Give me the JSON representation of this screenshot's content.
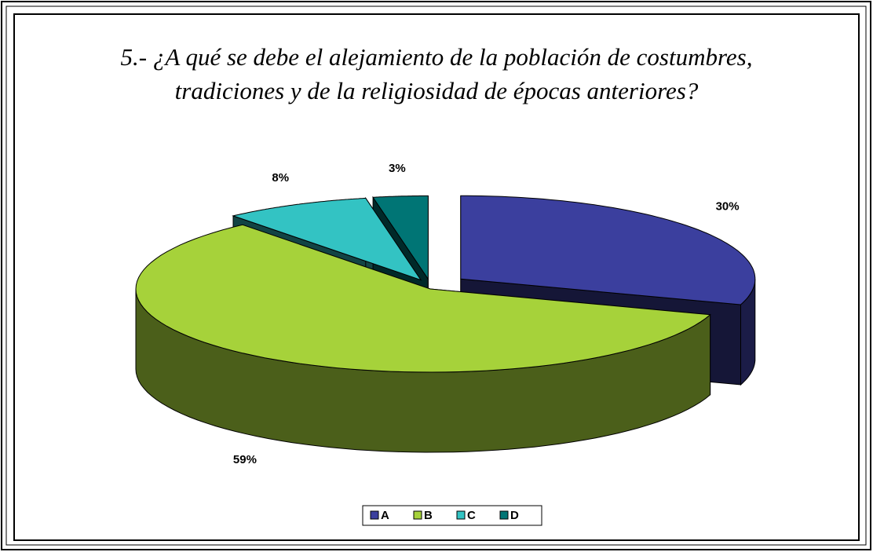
{
  "chart_data": {
    "type": "pie3d",
    "title": [
      "5.- ¿A qué se debe el alejamiento de la población de costumbres,",
      "tradiciones y de la religiosidad de épocas anteriores?"
    ],
    "categories": [
      "A",
      "B",
      "C",
      "D"
    ],
    "values": [
      30,
      59,
      8,
      3
    ],
    "value_labels": [
      "30%",
      "59%",
      "8%",
      "3%"
    ],
    "colors": [
      "#3b3f9e",
      "#a6d23a",
      "#33c3c3",
      "#007575"
    ],
    "legend": "bottom"
  }
}
